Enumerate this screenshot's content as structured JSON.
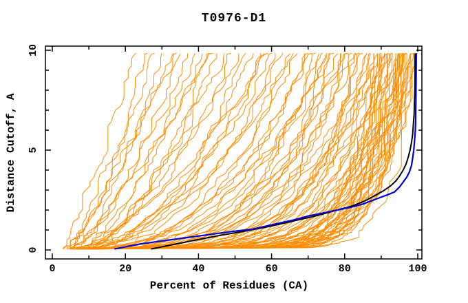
{
  "page": {
    "background": "#ffffff"
  },
  "chart_data": {
    "type": "line",
    "title": "T0976-D1",
    "xlabel": "Percent of Residues (CA)",
    "ylabel": "Distance Cutoff, A",
    "xlim": [
      -2,
      101.5
    ],
    "ylim": [
      -0.5,
      10.2
    ],
    "x_major_ticks": [
      0,
      20,
      40,
      60,
      80,
      100
    ],
    "x_minor_ticks": [
      10,
      30,
      50,
      70,
      90
    ],
    "y_major_ticks": [
      0,
      5,
      10
    ],
    "y_minor_ticks": [
      1,
      2,
      3,
      4,
      6,
      7,
      8,
      9
    ],
    "grid": false,
    "legend": "none",
    "colors": {
      "model_lines": "#ff8c00",
      "selected_model": "#0000cd",
      "reference_model": "#000000",
      "axis": "#000000",
      "text": "#000000",
      "background": "#ffffff"
    },
    "selected_model_curve": {
      "name": "selected-model",
      "points": [
        [
          17,
          0.05
        ],
        [
          24,
          0.3
        ],
        [
          30,
          0.45
        ],
        [
          36,
          0.6
        ],
        [
          42,
          0.75
        ],
        [
          49,
          0.92
        ],
        [
          55,
          1.05
        ],
        [
          61,
          1.3
        ],
        [
          66,
          1.5
        ],
        [
          70,
          1.7
        ],
        [
          74,
          1.85
        ],
        [
          78,
          2.0
        ],
        [
          82,
          2.15
        ],
        [
          85,
          2.3
        ],
        [
          89.3,
          2.6
        ],
        [
          91.5,
          2.75
        ],
        [
          93.6,
          2.9
        ],
        [
          95,
          3.15
        ],
        [
          96,
          3.4
        ],
        [
          97,
          3.65
        ],
        [
          97.7,
          3.9
        ],
        [
          98.3,
          4.25
        ],
        [
          98.6,
          4.6
        ],
        [
          98.9,
          5.0
        ],
        [
          99.1,
          5.4
        ],
        [
          99.3,
          5.9
        ],
        [
          99.4,
          6.3
        ],
        [
          99.5,
          7.5
        ],
        [
          99.55,
          8.6
        ],
        [
          99.6,
          9.85
        ]
      ]
    },
    "reference_model_curve": {
      "name": "reference-model",
      "points": [
        [
          27,
          0.05
        ],
        [
          38,
          0.45
        ],
        [
          45,
          0.7
        ],
        [
          53,
          0.95
        ],
        [
          60,
          1.2
        ],
        [
          66,
          1.45
        ],
        [
          72,
          1.7
        ],
        [
          77,
          1.95
        ],
        [
          82,
          2.2
        ],
        [
          85.5,
          2.45
        ],
        [
          88,
          2.7
        ],
        [
          90.5,
          2.95
        ],
        [
          92.5,
          3.2
        ],
        [
          94,
          3.45
        ],
        [
          95,
          3.7
        ],
        [
          96,
          4.0
        ],
        [
          96.8,
          4.3
        ],
        [
          97.4,
          4.65
        ],
        [
          97.9,
          5.0
        ],
        [
          98.3,
          5.4
        ],
        [
          98.6,
          5.8
        ],
        [
          98.8,
          6.3
        ],
        [
          99,
          6.8
        ],
        [
          99.1,
          7.4
        ],
        [
          99.2,
          8.0
        ],
        [
          99.3,
          9.85
        ]
      ]
    },
    "model_curves": {
      "format": "[x_at_bottom, x_at_top, shape_exponent]",
      "y_start": 0.05,
      "y_end": 9.85,
      "params": [
        [
          3,
          23,
          1.1
        ],
        [
          4,
          26,
          1.3
        ],
        [
          5,
          28,
          1.2
        ],
        [
          6,
          30,
          1.5
        ],
        [
          3,
          33,
          1.3
        ],
        [
          4,
          35,
          1.6
        ],
        [
          5,
          37,
          1.4
        ],
        [
          6,
          39,
          1.7
        ],
        [
          7,
          41,
          1.5
        ],
        [
          8,
          43,
          1.8
        ],
        [
          9,
          45,
          1.6
        ],
        [
          4,
          34,
          1.1
        ],
        [
          5,
          44,
          1.2
        ],
        [
          4,
          47,
          1.8
        ],
        [
          5,
          49,
          2.0
        ],
        [
          6,
          51,
          1.7
        ],
        [
          7,
          53,
          2.2
        ],
        [
          8,
          55,
          1.9
        ],
        [
          4,
          57,
          2.4
        ],
        [
          5,
          59,
          2.0
        ],
        [
          6,
          61,
          2.6
        ],
        [
          7,
          63,
          2.2
        ],
        [
          8,
          65,
          2.8
        ],
        [
          9,
          67,
          2.3
        ],
        [
          10,
          69,
          3.0
        ],
        [
          5,
          58,
          1.6
        ],
        [
          6,
          66,
          1.9
        ],
        [
          8,
          70,
          2.5
        ],
        [
          7,
          60,
          2.1
        ],
        [
          5,
          71,
          2.6
        ],
        [
          6,
          73,
          3.2
        ],
        [
          7,
          75,
          2.8
        ],
        [
          8,
          77,
          3.5
        ],
        [
          9,
          79,
          3.0
        ],
        [
          10,
          81,
          3.8
        ],
        [
          11,
          83,
          3.2
        ],
        [
          12,
          85,
          4.0
        ],
        [
          6,
          87,
          3.4
        ],
        [
          5,
          72,
          4.2
        ],
        [
          6,
          74,
          3.6
        ],
        [
          7,
          76,
          4.5
        ],
        [
          8,
          78,
          3.8
        ],
        [
          9,
          80,
          4.8
        ],
        [
          10,
          82,
          4.0
        ],
        [
          11,
          84,
          5.0
        ],
        [
          12,
          86,
          4.2
        ],
        [
          5,
          87,
          5.2
        ],
        [
          7,
          79,
          3.3
        ],
        [
          9,
          83,
          5.5
        ],
        [
          11,
          86,
          6.0
        ],
        [
          8,
          75,
          2.5
        ],
        [
          6,
          88,
          4.5
        ],
        [
          8,
          89,
          5.0
        ],
        [
          10,
          90,
          5.5
        ],
        [
          12,
          91,
          6.0
        ],
        [
          7,
          92,
          6.5
        ],
        [
          9,
          93,
          7.0
        ],
        [
          11,
          94,
          7.5
        ],
        [
          13,
          95,
          8.0
        ],
        [
          5,
          96,
          8.5
        ],
        [
          8,
          97,
          9.0
        ],
        [
          6,
          98,
          9.5
        ],
        [
          9,
          99,
          10.0
        ],
        [
          7,
          88,
          10.5
        ],
        [
          10,
          89,
          11.0
        ],
        [
          12,
          90,
          11.5
        ],
        [
          5,
          91,
          12.0
        ],
        [
          8,
          92,
          5.2
        ],
        [
          11,
          93,
          5.8
        ],
        [
          6,
          94,
          6.2
        ],
        [
          9,
          95,
          6.8
        ],
        [
          12,
          96,
          7.2
        ],
        [
          7,
          97,
          7.8
        ],
        [
          10,
          98,
          8.2
        ],
        [
          5,
          99,
          8.8
        ],
        [
          8,
          100,
          9.2
        ],
        [
          11,
          88,
          9.8
        ],
        [
          6,
          89,
          4.2
        ],
        [
          9,
          90,
          4.8
        ],
        [
          12,
          91,
          5.4
        ],
        [
          7,
          92,
          10.8
        ],
        [
          10,
          93,
          11.2
        ],
        [
          5,
          94,
          11.8
        ],
        [
          8,
          95,
          12.5
        ],
        [
          11,
          96,
          13.0
        ],
        [
          6,
          97,
          6.4
        ],
        [
          9,
          98,
          7.4
        ],
        [
          12,
          99,
          8.4
        ],
        [
          7,
          95,
          9.4
        ],
        [
          10,
          96,
          10.4
        ],
        [
          5,
          98,
          11.4
        ],
        [
          8,
          97,
          12.2
        ],
        [
          11,
          99,
          13.5
        ],
        [
          6,
          93,
          7.6
        ],
        [
          9,
          96,
          5.6
        ]
      ]
    }
  }
}
